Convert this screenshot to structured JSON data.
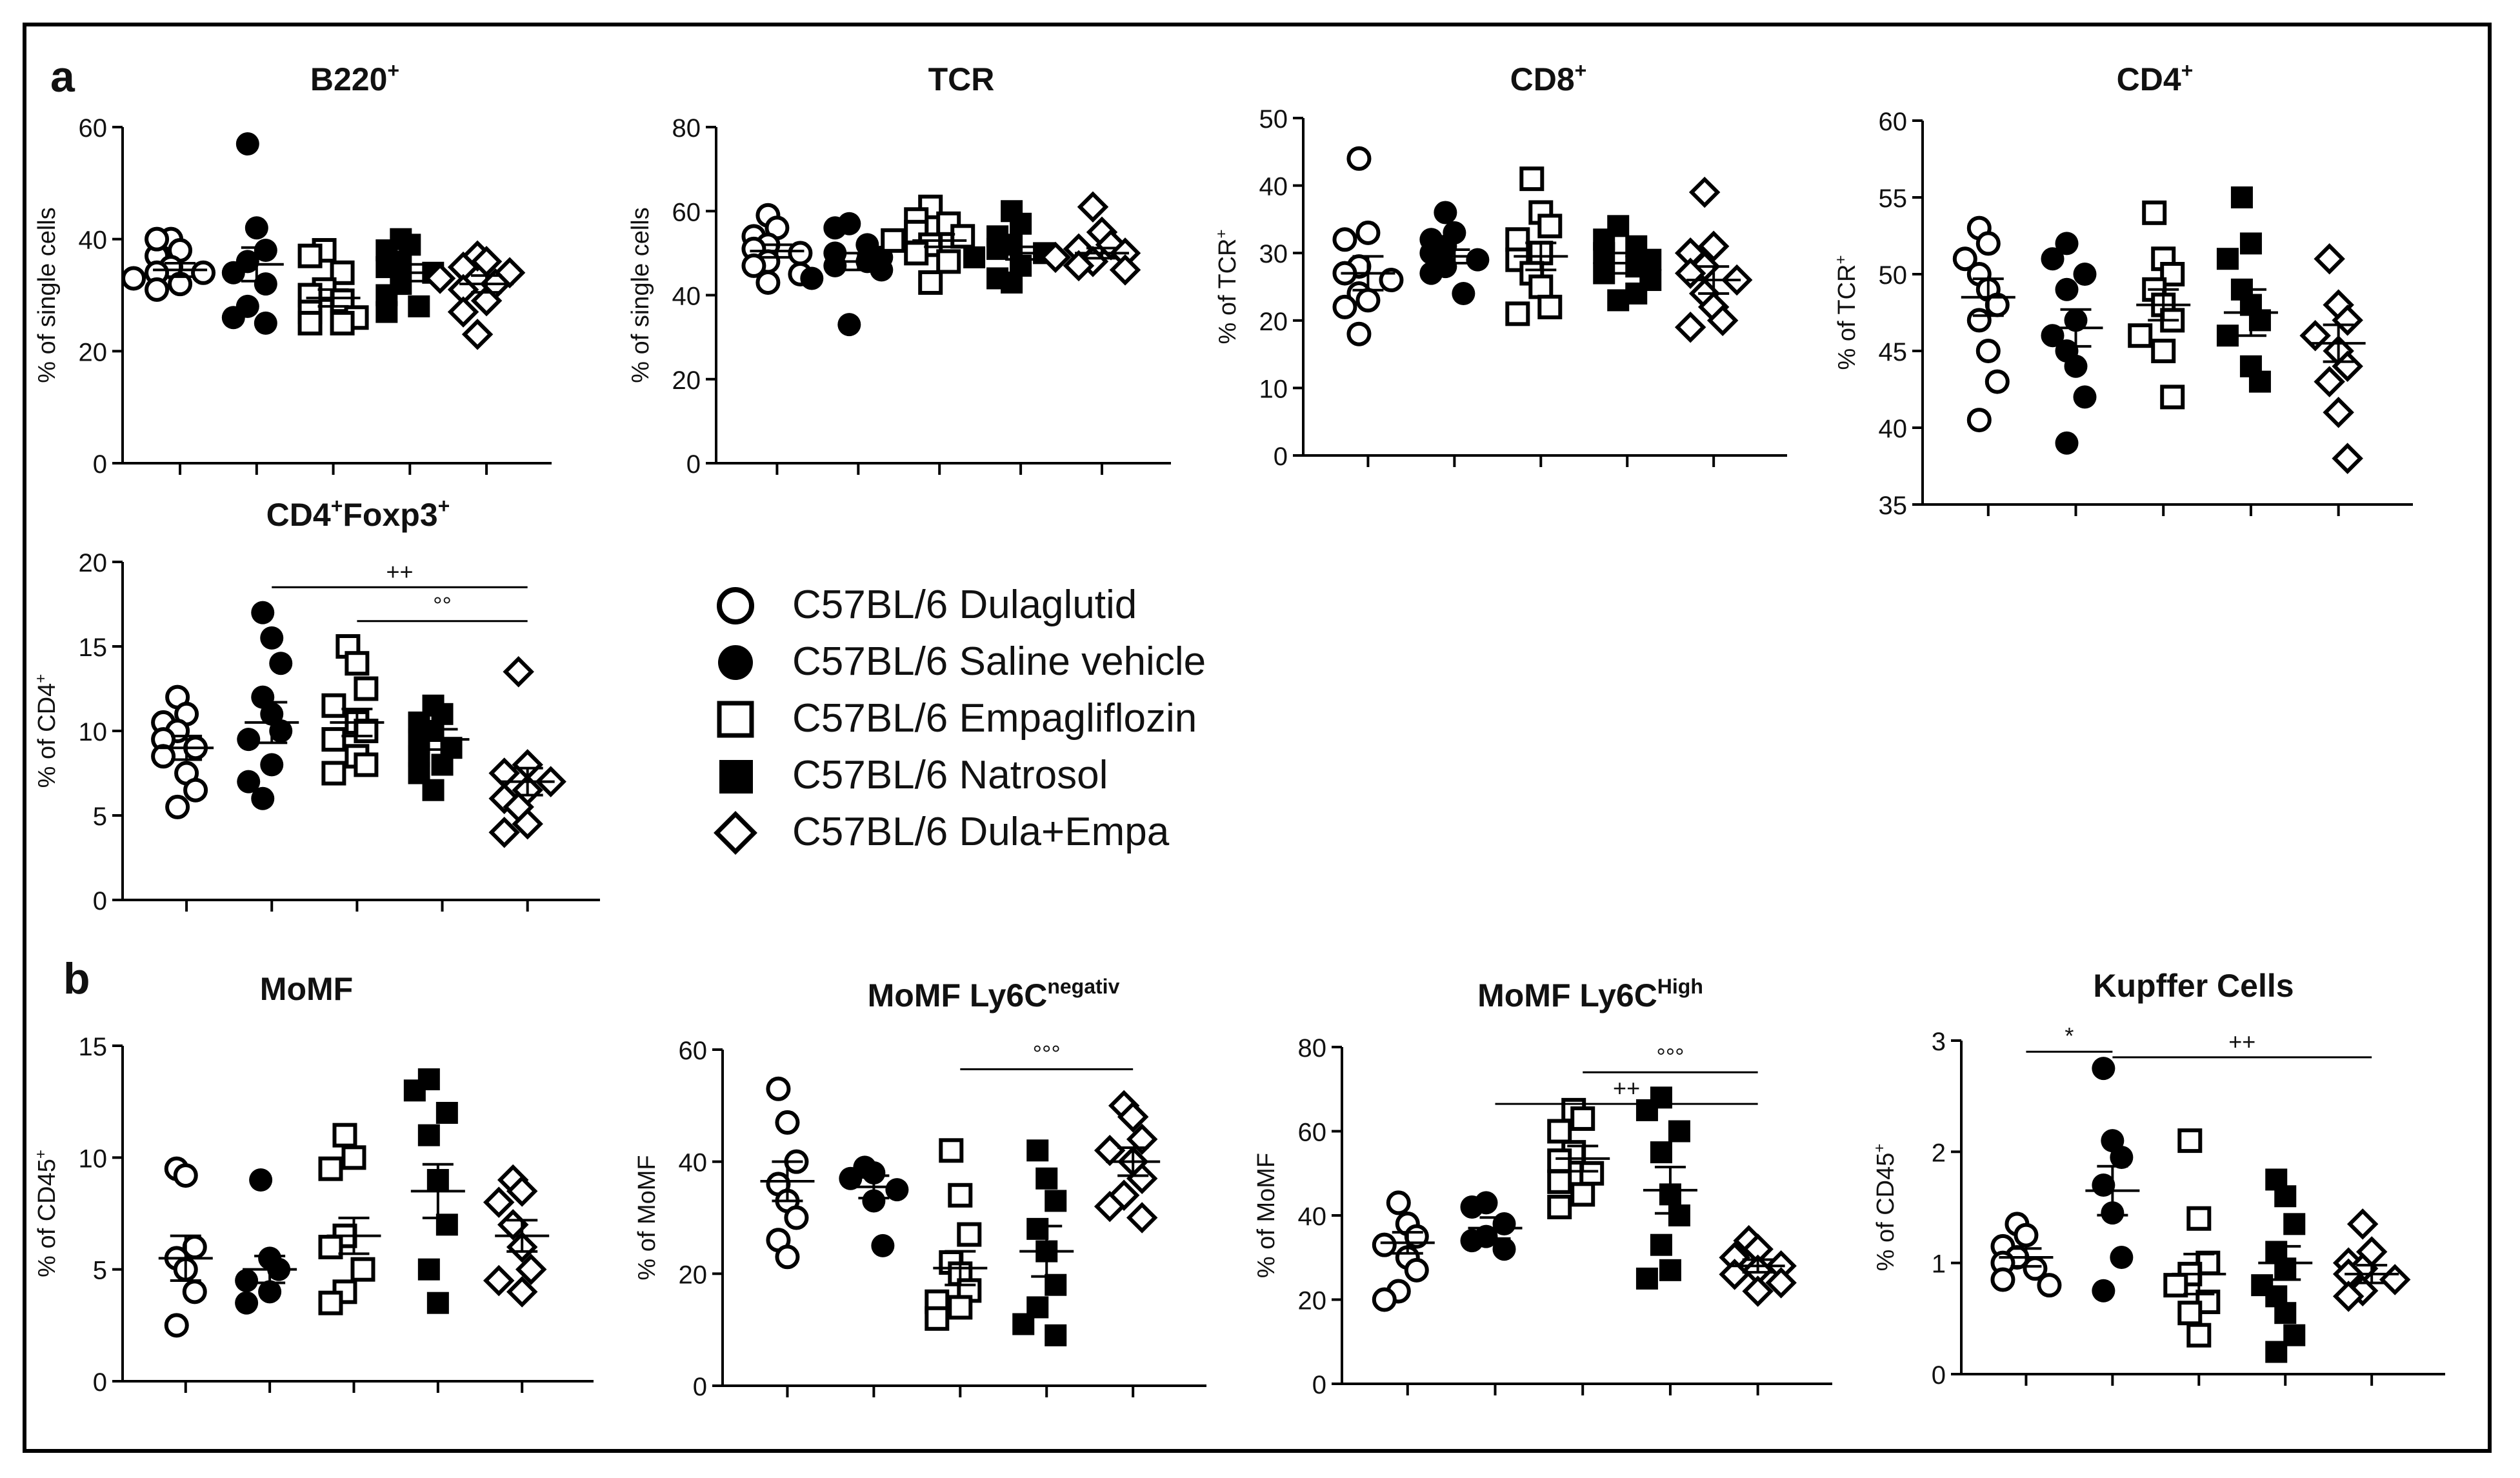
{
  "panel_labels": {
    "a": "a",
    "b": "b"
  },
  "legend": [
    {
      "label": "C57BL/6 Dulaglutid",
      "marker": "circle-open"
    },
    {
      "label": "C57BL/6 Saline vehicle",
      "marker": "circle-filled"
    },
    {
      "label": "C57BL/6 Empagliflozin",
      "marker": "square-open"
    },
    {
      "label": "C57BL/6 Natrosol",
      "marker": "square-filled"
    },
    {
      "label": "C57BL/6 Dula+Empa",
      "marker": "diamond-open"
    }
  ],
  "chart_data": [
    {
      "type": "scatter",
      "id": "b220",
      "title": "B220",
      "title_sup": "+",
      "ylabel": "% of single cells",
      "ylabel_sup": "",
      "ylim": [
        0,
        60
      ],
      "yticks": [
        0,
        20,
        40,
        60
      ],
      "series": [
        {
          "name": "C57BL/6 Dulaglutid",
          "marker": "circle-open",
          "mean": 34.5,
          "sem": 1.2,
          "values": [
            40,
            38,
            37,
            35,
            34,
            34,
            33,
            32,
            31,
            40
          ]
        },
        {
          "name": "C57BL/6 Saline vehicle",
          "marker": "circle-filled",
          "mean": 35.5,
          "sem": 3,
          "values": [
            57,
            42,
            38,
            36,
            34,
            32,
            28,
            26,
            25
          ]
        },
        {
          "name": "C57BL/6 Empagliflozin",
          "marker": "square-open",
          "mean": 29.5,
          "sem": 1.5,
          "values": [
            38,
            37,
            34,
            31,
            30,
            29,
            27,
            26,
            25,
            25
          ]
        },
        {
          "name": "C57BL/6 Natrosol",
          "marker": "square-filled",
          "mean": 34,
          "sem": 1.5,
          "values": [
            40,
            39,
            38,
            36,
            35,
            34,
            32,
            30,
            28,
            27
          ]
        },
        {
          "name": "C57BL/6 Dula+Empa",
          "marker": "diamond-open",
          "mean": 32,
          "sem": 1.5,
          "values": [
            37,
            36,
            35,
            34,
            33,
            32,
            31,
            29,
            27,
            23
          ]
        }
      ],
      "significance": []
    },
    {
      "type": "scatter",
      "id": "tcr",
      "title": "TCR",
      "title_sup": "",
      "ylabel": "% of single cells",
      "ylabel_sup": "",
      "ylim": [
        0,
        80
      ],
      "yticks": [
        0,
        20,
        40,
        60,
        80
      ],
      "series": [
        {
          "name": "C57BL/6 Dulaglutid",
          "marker": "circle-open",
          "mean": 50.5,
          "sem": 1.5,
          "values": [
            59,
            56,
            54,
            52,
            51,
            50,
            48,
            47,
            45,
            43
          ]
        },
        {
          "name": "C57BL/6 Saline vehicle",
          "marker": "circle-filled",
          "mean": 48,
          "sem": 2,
          "values": [
            57,
            56,
            52,
            50,
            49,
            48,
            47,
            46,
            44,
            33
          ]
        },
        {
          "name": "C57BL/6 Empagliflozin",
          "marker": "square-open",
          "mean": 53,
          "sem": 1.5,
          "values": [
            61,
            58,
            57,
            55,
            54,
            53,
            52,
            50,
            48,
            43
          ]
        },
        {
          "name": "C57BL/6 Natrosol",
          "marker": "square-filled",
          "mean": 50,
          "sem": 1.5,
          "values": [
            60,
            57,
            54,
            52,
            51,
            50,
            49,
            47,
            44,
            43
          ]
        },
        {
          "name": "C57BL/6 Dula+Empa",
          "marker": "diamond-open",
          "mean": 50,
          "sem": 1.2,
          "values": [
            61,
            55,
            52,
            51,
            50,
            49,
            48,
            47,
            46
          ]
        }
      ],
      "significance": []
    },
    {
      "type": "scatter",
      "id": "cd8",
      "title": "CD8",
      "title_sup": "+",
      "ylabel": "% of TCR",
      "ylabel_sup": "+",
      "ylim": [
        0,
        50
      ],
      "yticks": [
        0,
        10,
        20,
        30,
        40,
        50
      ],
      "series": [
        {
          "name": "C57BL/6 Dulaglutid",
          "marker": "circle-open",
          "mean": 27,
          "sem": 2.5,
          "values": [
            44,
            33,
            32,
            28,
            27,
            26,
            24,
            23,
            22,
            18
          ]
        },
        {
          "name": "C57BL/6 Saline vehicle",
          "marker": "circle-filled",
          "mean": 29.5,
          "sem": 1,
          "values": [
            36,
            33,
            32,
            31,
            30,
            29,
            28,
            27,
            24
          ]
        },
        {
          "name": "C57BL/6 Empagliflozin",
          "marker": "square-open",
          "mean": 29.5,
          "sem": 2,
          "values": [
            41,
            36,
            34,
            32,
            30,
            29,
            27,
            25,
            22,
            21
          ]
        },
        {
          "name": "C57BL/6 Natrosol",
          "marker": "square-filled",
          "mean": 28.5,
          "sem": 1.5,
          "values": [
            34,
            32,
            31,
            30,
            29,
            28,
            27,
            26,
            24,
            23
          ]
        },
        {
          "name": "C57BL/6 Dula+Empa",
          "marker": "diamond-open",
          "mean": 26,
          "sem": 2,
          "values": [
            39,
            31,
            30,
            28,
            27,
            26,
            24,
            22,
            20,
            19
          ]
        }
      ],
      "significance": []
    },
    {
      "type": "scatter",
      "id": "cd4",
      "title": "CD4",
      "title_sup": "+",
      "ylabel": "% of TCR",
      "ylabel_sup": "+",
      "ylim": [
        35,
        60
      ],
      "yticks": [
        35,
        40,
        45,
        50,
        55,
        60
      ],
      "series": [
        {
          "name": "C57BL/6 Dulaglutid",
          "marker": "circle-open",
          "mean": 48.5,
          "sem": 1.2,
          "values": [
            53,
            52,
            51,
            50,
            49,
            48,
            47,
            45,
            43,
            40.5
          ]
        },
        {
          "name": "C57BL/6 Saline vehicle",
          "marker": "circle-filled",
          "mean": 46.5,
          "sem": 1.2,
          "values": [
            52,
            51,
            50,
            49,
            47,
            46,
            45,
            44,
            42,
            39
          ]
        },
        {
          "name": "C57BL/6 Empagliflozin",
          "marker": "square-open",
          "mean": 48,
          "sem": 1,
          "values": [
            54,
            51,
            50,
            49,
            48,
            47,
            46,
            45,
            42
          ]
        },
        {
          "name": "C57BL/6 Natrosol",
          "marker": "square-filled",
          "mean": 47.5,
          "sem": 1.5,
          "values": [
            55,
            52,
            51,
            49,
            48,
            47,
            46,
            44,
            43
          ]
        },
        {
          "name": "C57BL/6 Dula+Empa",
          "marker": "diamond-open",
          "mean": 45.5,
          "sem": 1.2,
          "values": [
            51,
            48,
            47,
            46,
            45,
            44,
            43,
            41,
            38
          ]
        }
      ],
      "significance": []
    },
    {
      "type": "scatter",
      "id": "cd4foxp3",
      "title": "CD4",
      "title_sup": "+",
      "title2": "Foxp3",
      "title2_sup": "+",
      "ylabel": "% of CD4",
      "ylabel_sup": "+",
      "ylim": [
        0,
        20
      ],
      "yticks": [
        0,
        5,
        10,
        15,
        20
      ],
      "series": [
        {
          "name": "C57BL/6 Dulaglutid",
          "marker": "circle-open",
          "mean": 9,
          "sem": 0.7,
          "values": [
            12,
            11,
            10.5,
            10,
            9.5,
            9,
            8.5,
            7.5,
            6.5,
            5.5
          ]
        },
        {
          "name": "C57BL/6 Saline vehicle",
          "marker": "circle-filled",
          "mean": 10.5,
          "sem": 1.2,
          "values": [
            17,
            15.5,
            14,
            12,
            11,
            10,
            9.5,
            8,
            7,
            6
          ]
        },
        {
          "name": "C57BL/6 Empagliflozin",
          "marker": "square-open",
          "mean": 10.5,
          "sem": 0.8,
          "values": [
            15,
            14,
            12.5,
            11.5,
            10.5,
            10,
            9.5,
            8.5,
            8,
            7.5
          ]
        },
        {
          "name": "C57BL/6 Natrosol",
          "marker": "square-filled",
          "mean": 9.5,
          "sem": 0.6,
          "values": [
            11.5,
            11,
            10.5,
            10,
            9.5,
            9,
            8.5,
            8,
            7.5,
            6.5
          ]
        },
        {
          "name": "C57BL/6 Dula+Empa",
          "marker": "diamond-open",
          "mean": 7,
          "sem": 0.8,
          "values": [
            13.5,
            8,
            7.5,
            7,
            6.5,
            6,
            5.5,
            4.5,
            4
          ]
        }
      ],
      "significance": [
        {
          "from": 1,
          "to": 4,
          "y": 18.5,
          "label": "++"
        },
        {
          "from": 2,
          "to": 4,
          "y": 16.5,
          "label": "°°"
        }
      ]
    },
    {
      "type": "scatter",
      "id": "momf",
      "title": "MoMF",
      "title_sup": "",
      "ylabel": "% of CD45",
      "ylabel_sup": "+",
      "ylim": [
        0,
        15
      ],
      "yticks": [
        0,
        5,
        10,
        15
      ],
      "series": [
        {
          "name": "C57BL/6 Dulaglutid",
          "marker": "circle-open",
          "mean": 5.5,
          "sem": 1,
          "values": [
            9.5,
            9.2,
            6,
            5.5,
            5,
            4,
            2.5
          ]
        },
        {
          "name": "C57BL/6 Saline vehicle",
          "marker": "circle-filled",
          "mean": 5,
          "sem": 0.6,
          "values": [
            9,
            5.5,
            5,
            4.5,
            4,
            3.5
          ]
        },
        {
          "name": "C57BL/6 Empagliflozin",
          "marker": "square-open",
          "mean": 6.5,
          "sem": 0.8,
          "values": [
            11,
            10,
            9.5,
            6.5,
            6,
            5,
            4,
            3.5
          ]
        },
        {
          "name": "C57BL/6 Natrosol",
          "marker": "square-filled",
          "mean": 8.5,
          "sem": 1.2,
          "values": [
            13.5,
            13,
            12,
            11,
            9,
            7,
            5,
            3.5
          ]
        },
        {
          "name": "C57BL/6 Dula+Empa",
          "marker": "diamond-open",
          "mean": 6.5,
          "sem": 0.7,
          "values": [
            9,
            8.5,
            8,
            7,
            6,
            5,
            4.5,
            4
          ]
        }
      ],
      "significance": []
    },
    {
      "type": "scatter",
      "id": "momf_ly6cneg",
      "title": "MoMF Ly6C",
      "title_sup": "negativ",
      "ylabel": "% of MoMF",
      "ylabel_sup": "",
      "ylim": [
        0,
        60
      ],
      "yticks": [
        0,
        20,
        40,
        60
      ],
      "series": [
        {
          "name": "C57BL/6 Dulaglutid",
          "marker": "circle-open",
          "mean": 36.5,
          "sem": 3.5,
          "values": [
            53,
            47,
            40,
            36,
            33,
            30,
            26,
            23
          ]
        },
        {
          "name": "C57BL/6 Saline vehicle",
          "marker": "circle-filled",
          "mean": 35.5,
          "sem": 2,
          "values": [
            39,
            38,
            37,
            35,
            33,
            25
          ]
        },
        {
          "name": "C57BL/6 Empagliflozin",
          "marker": "square-open",
          "mean": 21,
          "sem": 3,
          "values": [
            42,
            34,
            27,
            22,
            20,
            17,
            15,
            14,
            12
          ]
        },
        {
          "name": "C57BL/6 Natrosol",
          "marker": "square-filled",
          "mean": 24,
          "sem": 4.5,
          "values": [
            42,
            37,
            33,
            28,
            24,
            18,
            14,
            11,
            9
          ]
        },
        {
          "name": "C57BL/6 Dula+Empa",
          "marker": "diamond-open",
          "mean": 40,
          "sem": 2.5,
          "values": [
            50,
            48,
            44,
            42,
            40,
            37,
            34,
            32,
            30
          ]
        }
      ],
      "significance": [
        {
          "from": 2,
          "to": 4,
          "y": 56.5,
          "label": "°°°"
        }
      ]
    },
    {
      "type": "scatter",
      "id": "momf_ly6chigh",
      "title": "MoMF Ly6C",
      "title_sup": "High",
      "ylabel": "% of MoMF",
      "ylabel_sup": "",
      "ylim": [
        0,
        80
      ],
      "yticks": [
        0,
        20,
        40,
        60,
        80
      ],
      "series": [
        {
          "name": "C57BL/6 Dulaglutid",
          "marker": "circle-open",
          "mean": 33.5,
          "sem": 2.5,
          "values": [
            43,
            38,
            35,
            33,
            30,
            27,
            22,
            20
          ]
        },
        {
          "name": "C57BL/6 Saline vehicle",
          "marker": "circle-filled",
          "mean": 37,
          "sem": 2.5,
          "values": [
            43,
            42,
            38,
            35,
            34,
            32
          ]
        },
        {
          "name": "C57BL/6 Empagliflozin",
          "marker": "square-open",
          "mean": 53.5,
          "sem": 3,
          "values": [
            65,
            63,
            60,
            55,
            53,
            50,
            48,
            45,
            42
          ]
        },
        {
          "name": "C57BL/6 Natrosol",
          "marker": "square-filled",
          "mean": 46,
          "sem": 5.5,
          "values": [
            68,
            65,
            60,
            55,
            45,
            40,
            33,
            27,
            25
          ]
        },
        {
          "name": "C57BL/6 Dula+Empa",
          "marker": "diamond-open",
          "mean": 28,
          "sem": 1.5,
          "values": [
            34,
            32,
            30,
            28,
            27,
            26,
            24,
            22
          ]
        }
      ],
      "significance": [
        {
          "from": 2,
          "to": 4,
          "y": 74,
          "label": "°°°"
        },
        {
          "from": 1,
          "to": 4,
          "y": 66.5,
          "label": "++"
        }
      ]
    },
    {
      "type": "scatter",
      "id": "kupffer",
      "title": "Kupffer Cells",
      "title_sup": "",
      "ylabel": "% of CD45",
      "ylabel_sup": "+",
      "ylim": [
        0,
        3
      ],
      "yticks": [
        0,
        1,
        2,
        3
      ],
      "series": [
        {
          "name": "C57BL/6 Dulaglutid",
          "marker": "circle-open",
          "mean": 1.05,
          "sem": 0.08,
          "values": [
            1.35,
            1.25,
            1.15,
            1.05,
            1.0,
            0.95,
            0.85,
            0.8
          ]
        },
        {
          "name": "C57BL/6 Saline vehicle",
          "marker": "circle-filled",
          "mean": 1.65,
          "sem": 0.22,
          "values": [
            2.75,
            2.1,
            1.95,
            1.7,
            1.45,
            1.05,
            0.75
          ]
        },
        {
          "name": "C57BL/6 Empagliflozin",
          "marker": "square-open",
          "mean": 0.9,
          "sem": 0.18,
          "values": [
            2.1,
            1.4,
            1.0,
            0.9,
            0.8,
            0.65,
            0.55,
            0.35
          ]
        },
        {
          "name": "C57BL/6 Natrosol",
          "marker": "square-filled",
          "mean": 1.0,
          "sem": 0.15,
          "values": [
            1.75,
            1.6,
            1.35,
            1.1,
            0.95,
            0.8,
            0.7,
            0.55,
            0.35,
            0.2
          ]
        },
        {
          "name": "C57BL/6 Dula+Empa",
          "marker": "diamond-open",
          "mean": 0.9,
          "sem": 0.08,
          "values": [
            1.35,
            1.1,
            1.0,
            0.95,
            0.9,
            0.85,
            0.75,
            0.7
          ]
        }
      ],
      "significance": [
        {
          "from": 0,
          "to": 1,
          "y": 2.9,
          "label": "*"
        },
        {
          "from": 1,
          "to": 4,
          "y": 2.85,
          "label": "++"
        }
      ]
    }
  ]
}
